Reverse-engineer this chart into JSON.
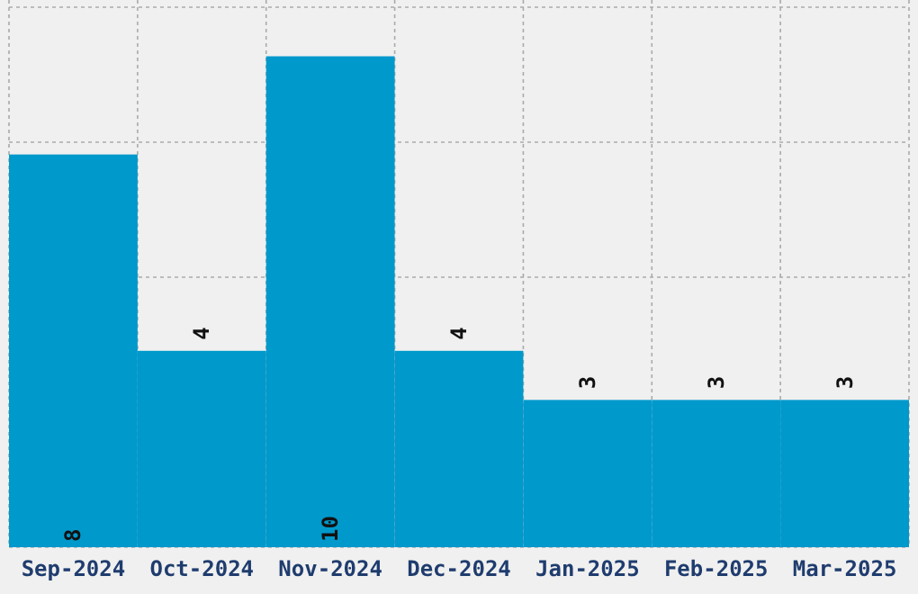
{
  "chart_data": {
    "type": "bar",
    "categories": [
      "Sep-2024",
      "Oct-2024",
      "Nov-2024",
      "Dec-2024",
      "Jan-2025",
      "Feb-2025",
      "Mar-2025"
    ],
    "values": [
      8,
      4,
      10,
      4,
      3,
      3,
      3
    ],
    "color": "#0099cc",
    "ylim": [
      0,
      11
    ],
    "tick_labels": "x",
    "grid": true,
    "data_labels": true
  }
}
